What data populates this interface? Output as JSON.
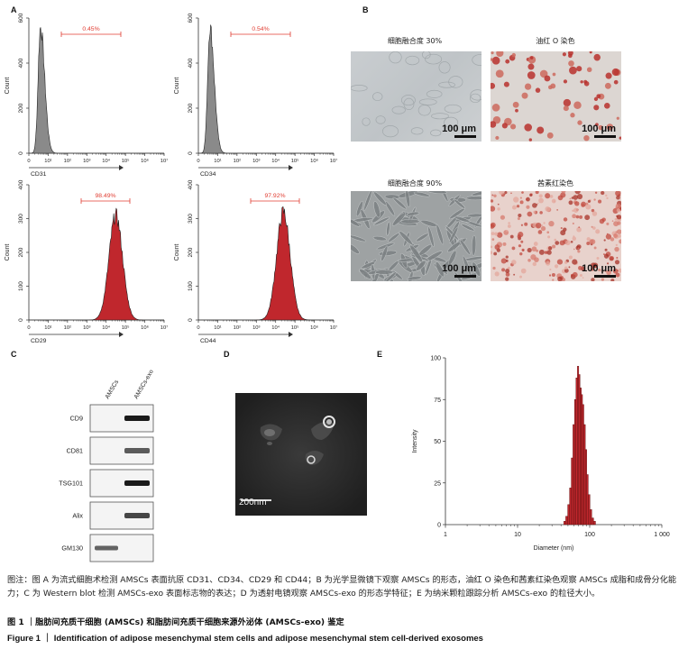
{
  "panels": {
    "A": "A",
    "B": "B",
    "C": "C",
    "D": "D",
    "E": "E"
  },
  "flow": {
    "ylabel": "Count",
    "xticks": [
      "10⁰",
      "10¹",
      "10²",
      "10³",
      "10⁴",
      "10⁵",
      "10⁶",
      "10⁷"
    ],
    "xtick_labels_raw": [
      "0",
      "10¹",
      "10²",
      "10³",
      "10⁴",
      "10⁵",
      "10⁶",
      "10⁷"
    ]
  },
  "chart_data": [
    {
      "type": "area",
      "title": "",
      "marker": "CD31",
      "gate_percent": "0.45%",
      "ylim": [
        0,
        600
      ],
      "yticks": [
        0,
        200,
        400,
        600
      ],
      "peak_log10": 0.6,
      "peak_count": 560,
      "color": "#8a8a8a"
    },
    {
      "type": "area",
      "title": "",
      "marker": "CD34",
      "gate_percent": "0.54%",
      "ylim": [
        0,
        600
      ],
      "yticks": [
        0,
        200,
        400,
        600
      ],
      "peak_log10": 0.6,
      "peak_count": 560,
      "color": "#8a8a8a"
    },
    {
      "type": "area",
      "title": "",
      "marker": "CD29",
      "gate_percent": "98.49%",
      "ylim": [
        0,
        400
      ],
      "yticks": [
        0,
        100,
        200,
        300,
        400
      ],
      "peak_log10": 4.5,
      "peak_count": 310,
      "color": "#c0272d"
    },
    {
      "type": "area",
      "title": "",
      "marker": "CD44",
      "gate_percent": "97.92%",
      "ylim": [
        0,
        400
      ],
      "yticks": [
        0,
        100,
        200,
        300,
        400
      ],
      "peak_log10": 4.4,
      "peak_count": 320,
      "color": "#c0272d"
    },
    {
      "type": "bar",
      "title": "",
      "xlabel": "Diameter (nm)",
      "ylabel": "Intensity",
      "xscale": "log",
      "xlim": [
        1,
        1000
      ],
      "xticks": [
        "1",
        "10",
        "100",
        "1 000"
      ],
      "ylim": [
        0,
        100
      ],
      "yticks": [
        0,
        25,
        50,
        75,
        100
      ],
      "x": [
        45,
        48,
        51,
        54,
        57,
        60,
        63,
        66,
        69,
        72,
        75,
        78,
        81,
        85,
        89,
        93,
        98,
        104,
        110,
        117
      ],
      "values": [
        2,
        5,
        12,
        22,
        40,
        60,
        75,
        88,
        95,
        90,
        82,
        78,
        72,
        60,
        45,
        30,
        18,
        9,
        4,
        2
      ],
      "color": "#c0272d"
    }
  ],
  "microscopy": {
    "top_left_label": "细胞融合度 30%",
    "top_right_label": "油红 O 染色",
    "bottom_left_label": "细胞融合度 90%",
    "bottom_right_label": "茜素红染色",
    "scale_label": "100 μm"
  },
  "western": {
    "lanes": [
      "AMSCs",
      "AMSCs-exo"
    ],
    "rows": [
      {
        "label": "CD9",
        "amscs": 0,
        "exo": 1
      },
      {
        "label": "CD81",
        "amscs": 0,
        "exo": 0.7
      },
      {
        "label": "TSG101",
        "amscs": 0,
        "exo": 1
      },
      {
        "label": "Alix",
        "amscs": 0,
        "exo": 0.8
      },
      {
        "label": "GM130",
        "amscs": 0.75,
        "exo": 0
      }
    ]
  },
  "tem": {
    "scale_label": "200nm"
  },
  "caption": {
    "note": "图注：图 A 为流式细胞术检测 AMSCs 表面抗原 CD31、CD34、CD29 和 CD44；B 为光学显微镜下观察 AMSCs 的形态，油红 O 染色和茜素红染色观察 AMSCs 成脂和成骨分化能力；C 为 Western blot 检测 AMSCs-exo 表面标志物的表达；D 为透射电镜观察 AMSCs-exo 的形态学特征；E 为纳米颗粒跟踪分析 AMSCs-exo 的粒径大小。",
    "fig_cn": "图 1 ｜脂肪间充质干细胞 (AMSCs) 和脂肪间充质干细胞来源外泌体 (AMSCs-exo) 鉴定",
    "fig_en": "Figure 1 ｜ Identification of adipose mesenchymal stem cells and adipose mesenchymal stem cell-derived exosomes"
  }
}
